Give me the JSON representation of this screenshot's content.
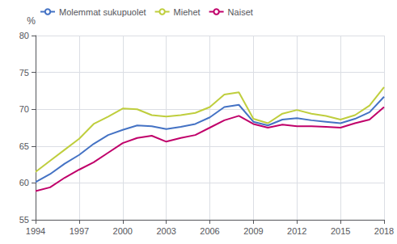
{
  "chart_data": {
    "type": "line",
    "ylabel": "%",
    "x": [
      1994,
      1995,
      1996,
      1997,
      1998,
      1999,
      2000,
      2001,
      2002,
      2003,
      2004,
      2005,
      2006,
      2007,
      2008,
      2009,
      2010,
      2011,
      2012,
      2013,
      2014,
      2015,
      2016,
      2017,
      2018
    ],
    "series": [
      {
        "name": "Molemmat sukupuolet",
        "color": "#4472C4",
        "values": [
          60.1,
          61.2,
          62.6,
          63.8,
          65.3,
          66.5,
          67.2,
          67.8,
          67.7,
          67.3,
          67.6,
          68.0,
          68.9,
          70.3,
          70.6,
          68.3,
          67.8,
          68.6,
          68.8,
          68.5,
          68.3,
          68.1,
          68.7,
          69.6,
          71.7
        ]
      },
      {
        "name": "Miehet",
        "color": "#BFCE3D",
        "values": [
          61.5,
          63.0,
          64.5,
          66.0,
          68.0,
          69.0,
          70.1,
          70.0,
          69.2,
          69.0,
          69.2,
          69.5,
          70.3,
          72.0,
          72.3,
          68.7,
          68.1,
          69.4,
          69.9,
          69.4,
          69.1,
          68.6,
          69.2,
          70.5,
          73.0
        ]
      },
      {
        "name": "Naiset",
        "color": "#C0006A",
        "values": [
          58.9,
          59.4,
          60.7,
          61.8,
          62.8,
          64.1,
          65.4,
          66.1,
          66.4,
          65.6,
          66.1,
          66.5,
          67.5,
          68.5,
          69.1,
          68.0,
          67.5,
          67.9,
          67.7,
          67.7,
          67.6,
          67.5,
          68.1,
          68.6,
          70.3
        ]
      }
    ],
    "xlim": [
      1994,
      2018
    ],
    "xticks": [
      1994,
      1997,
      2000,
      2003,
      2006,
      2009,
      2012,
      2015,
      2018
    ],
    "ylim": [
      55,
      80
    ],
    "yticks": [
      55,
      60,
      65,
      70,
      75,
      80
    ],
    "grid": true,
    "legend": "upper left"
  }
}
